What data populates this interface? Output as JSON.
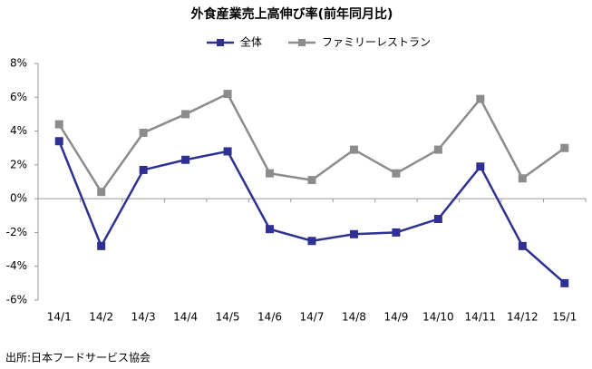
{
  "chart_data": {
    "type": "line",
    "title": "外食産業売上高伸び率(前年同月比)",
    "source": "出所:日本フードサービス協会",
    "categories": [
      "14/1",
      "14/2",
      "14/3",
      "14/4",
      "14/5",
      "14/6",
      "14/7",
      "14/8",
      "14/9",
      "14/10",
      "14/11",
      "14/12",
      "15/1"
    ],
    "series": [
      {
        "name": "全体",
        "color": "#2e3192",
        "values": [
          3.4,
          -2.8,
          1.7,
          2.3,
          2.8,
          -1.8,
          -2.5,
          -2.1,
          -2.0,
          -1.2,
          1.9,
          -2.8,
          -5.0
        ]
      },
      {
        "name": "ファミリーレストラン",
        "color": "#8c8c8c",
        "values": [
          4.4,
          0.4,
          3.9,
          5.0,
          6.2,
          1.5,
          1.1,
          2.9,
          1.5,
          2.9,
          5.9,
          1.2,
          3.0
        ]
      }
    ],
    "ylim": [
      -6,
      8
    ],
    "yticks": [
      {
        "value": -6,
        "label": "-6%"
      },
      {
        "value": -4,
        "label": "-4%"
      },
      {
        "value": -2,
        "label": "-2%"
      },
      {
        "value": 0,
        "label": "0%"
      },
      {
        "value": 2,
        "label": "2%"
      },
      {
        "value": 4,
        "label": "4%"
      },
      {
        "value": 6,
        "label": "6%"
      },
      {
        "value": 8,
        "label": "8%"
      }
    ],
    "legend": "top",
    "grid": false
  }
}
